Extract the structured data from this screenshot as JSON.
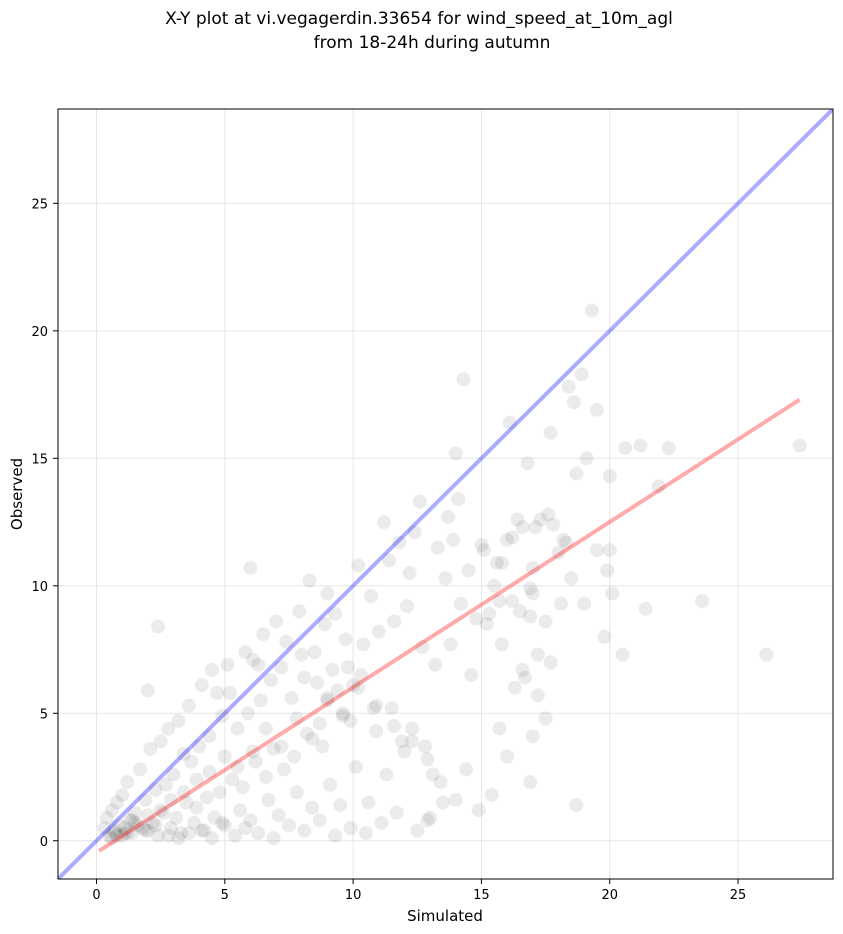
{
  "chart_data": {
    "type": "scatter",
    "title": [
      "X-Y plot at vi.vegagerdin.33654 for wind_speed_at_10m_agl",
      "from 18-24h during autumn"
    ],
    "xlabel": "Simulated",
    "ylabel": "Observed",
    "xlim": [
      -1.5,
      28.7
    ],
    "ylim": [
      -1.5,
      28.7
    ],
    "xticks": [
      0,
      5,
      10,
      15,
      20,
      25
    ],
    "yticks": [
      0,
      5,
      10,
      15,
      20,
      25
    ],
    "grid": true,
    "point_color": "#000000",
    "point_alpha": 0.08,
    "series": [
      {
        "values_x": [
          19.3,
          14.3,
          18.9,
          18.4,
          18.6,
          19.5,
          21.2,
          21.9,
          16.1,
          17.7,
          20.6,
          22.3,
          19.1,
          16.8,
          18.7,
          20.0,
          20.0,
          17.3,
          17.6,
          15.1,
          16.2,
          15.8,
          17.0,
          16.9,
          18.0,
          18.5,
          19.0,
          19.8,
          19.5,
          20.1,
          18.3,
          17.0,
          15.7,
          16.5,
          16.9,
          17.5,
          18.1,
          17.7,
          16.6,
          16.3,
          15.2,
          15.8,
          17.2,
          16.7,
          19.9,
          20.5,
          21.4,
          23.6,
          26.1,
          27.4,
          18.7,
          17.5,
          17.2,
          16.0,
          15.4,
          15.7,
          16.9,
          17.0,
          14.9,
          14.4,
          13.5,
          12.9,
          12.8,
          13.1,
          12.3,
          11.9,
          11.5,
          10.9,
          10.0,
          9.6,
          9.8,
          9.0,
          8.7,
          8.1,
          6.0,
          6.1,
          2.4,
          2.0,
          14.0,
          14.1,
          13.9,
          13.7,
          14.5,
          12.6,
          12.2,
          11.4,
          10.7,
          10.2,
          9.3,
          9.0,
          8.5,
          8.3,
          7.9,
          7.4,
          7.0,
          6.5,
          6.3,
          5.8,
          5.1,
          4.7,
          4.5,
          4.1,
          3.6,
          3.2,
          2.8,
          2.5,
          2.1,
          1.7,
          1.2,
          1.0,
          0.8,
          0.6,
          0.4,
          0.3,
          11.2,
          11.8,
          12.4,
          13.3,
          13.6,
          14.2,
          14.8,
          15.3,
          15.6,
          16.0,
          16.4,
          12.1,
          11.6,
          11.0,
          10.4,
          9.7,
          9.2,
          8.9,
          8.6,
          8.0,
          7.6,
          7.2,
          6.8,
          6.4,
          5.9,
          5.5,
          5.2,
          4.9,
          4.4,
          4.0,
          3.7,
          3.4,
          3.0,
          2.7,
          2.3,
          1.9,
          1.5,
          1.3,
          0.9,
          0.7,
          0.5,
          10.8,
          10.3,
          9.9,
          9.4,
          8.8,
          8.2,
          7.7,
          7.3,
          6.9,
          6.6,
          6.2,
          5.7,
          5.3,
          4.8,
          4.3,
          3.9,
          3.5,
          3.1,
          2.6,
          2.2,
          1.8,
          1.4,
          1.1,
          12.7,
          13.2,
          13.8,
          14.6,
          15.0,
          15.5,
          16.2,
          16.6,
          17.1,
          17.8,
          18.2,
          12.0,
          11.3,
          10.6,
          10.1,
          9.5,
          9.1,
          8.4,
          7.8,
          7.1,
          6.7,
          6.0,
          5.6,
          5.0,
          4.6,
          4.2,
          3.8,
          3.3,
          2.9,
          2.4,
          2.0,
          1.6,
          1.2,
          0.8,
          13.0,
          12.5,
          11.7,
          11.1,
          10.5,
          9.9,
          9.3,
          8.7,
          8.1,
          7.5,
          6.9,
          6.3,
          5.8,
          5.4,
          4.9,
          4.5,
          4.1,
          3.6,
          3.2,
          2.8,
          2.3,
          1.9,
          1.4,
          1.0,
          0.6,
          14.0,
          13.4,
          12.9,
          12.3,
          11.6,
          10.9,
          10.2,
          9.6,
          9.0,
          8.4,
          7.8,
          7.2,
          6.6,
          6.1,
          5.5,
          5.0,
          4.4,
          3.9,
          3.4,
          2.9,
          2.5,
          2.0,
          1.5,
          1.1,
          0.7
        ],
        "values_y": [
          20.8,
          18.1,
          18.3,
          17.8,
          17.2,
          16.9,
          15.5,
          13.9,
          16.4,
          16.0,
          15.4,
          15.4,
          15.0,
          14.8,
          14.4,
          14.3,
          11.4,
          12.6,
          12.8,
          11.4,
          11.9,
          10.9,
          10.7,
          9.9,
          11.3,
          10.3,
          9.3,
          8.0,
          11.4,
          9.7,
          11.7,
          9.7,
          9.4,
          9.0,
          8.8,
          8.6,
          9.3,
          7.0,
          6.7,
          6.0,
          8.5,
          7.7,
          7.3,
          6.4,
          10.6,
          7.3,
          9.1,
          9.4,
          7.3,
          15.5,
          1.4,
          4.8,
          5.7,
          3.3,
          1.8,
          4.4,
          2.3,
          4.1,
          1.2,
          2.8,
          1.5,
          0.8,
          3.7,
          2.6,
          4.4,
          3.9,
          5.2,
          4.3,
          6.1,
          5.0,
          6.8,
          5.5,
          4.6,
          6.4,
          10.7,
          7.1,
          8.4,
          5.9,
          15.2,
          13.4,
          11.8,
          12.7,
          10.6,
          13.3,
          10.5,
          11.0,
          9.6,
          10.8,
          8.9,
          9.7,
          7.4,
          10.2,
          9.0,
          7.8,
          8.6,
          8.1,
          6.9,
          7.4,
          6.9,
          5.8,
          6.7,
          6.1,
          5.3,
          4.7,
          4.4,
          3.9,
          3.6,
          2.8,
          2.3,
          1.8,
          1.5,
          1.2,
          0.9,
          0.5,
          12.5,
          11.7,
          12.1,
          11.5,
          10.3,
          9.3,
          8.7,
          8.9,
          10.9,
          11.8,
          12.6,
          9.2,
          8.6,
          8.2,
          7.7,
          7.9,
          6.7,
          8.5,
          6.2,
          7.3,
          5.6,
          6.8,
          6.3,
          5.5,
          5.0,
          4.4,
          5.8,
          4.9,
          4.1,
          3.7,
          3.1,
          3.4,
          2.6,
          2.2,
          2.0,
          1.6,
          1.1,
          0.8,
          0.6,
          0.4,
          0.2,
          5.2,
          6.5,
          4.7,
          5.9,
          3.7,
          4.2,
          3.3,
          2.8,
          3.6,
          2.5,
          3.1,
          2.1,
          2.4,
          1.9,
          1.7,
          1.3,
          1.5,
          0.9,
          1.1,
          0.7,
          0.5,
          0.8,
          0.3,
          7.6,
          6.9,
          7.7,
          6.5,
          11.6,
          10.0,
          9.4,
          12.3,
          12.3,
          12.4,
          11.8,
          3.5,
          2.6,
          1.5,
          2.9,
          1.4,
          2.2,
          1.3,
          1.9,
          1.0,
          1.6,
          0.8,
          1.2,
          0.6,
          0.9,
          0.4,
          0.7,
          0.3,
          0.5,
          0.2,
          0.4,
          0.6,
          0.3,
          0.2,
          0.9,
          0.4,
          1.1,
          0.7,
          0.3,
          0.5,
          0.2,
          0.8,
          0.4,
          0.6,
          0.1,
          0.3,
          0.5,
          0.2,
          0.7,
          0.1,
          0.4,
          0.3,
          0.1,
          0.2,
          0.6,
          0.4,
          0.3,
          0.2,
          0.1,
          1.6,
          2.3,
          3.2,
          3.9,
          4.5,
          5.3,
          6.0,
          4.9,
          5.6,
          4.0,
          4.8,
          3.7,
          4.4,
          3.5,
          2.9,
          3.3,
          2.7,
          2.4,
          1.9,
          1.6,
          1.2,
          1.0,
          0.7,
          0.5,
          0.3
        ]
      }
    ],
    "reference_lines": [
      {
        "kind": "identity",
        "color": "#0000ff",
        "alpha": 0.33,
        "from": [
          -1.5,
          -1.5
        ],
        "to": [
          28.7,
          28.7
        ]
      },
      {
        "kind": "fit",
        "color": "#ff0000",
        "alpha": 0.33,
        "from": [
          0.1,
          -0.4
        ],
        "to": [
          27.4,
          17.3
        ]
      }
    ]
  }
}
